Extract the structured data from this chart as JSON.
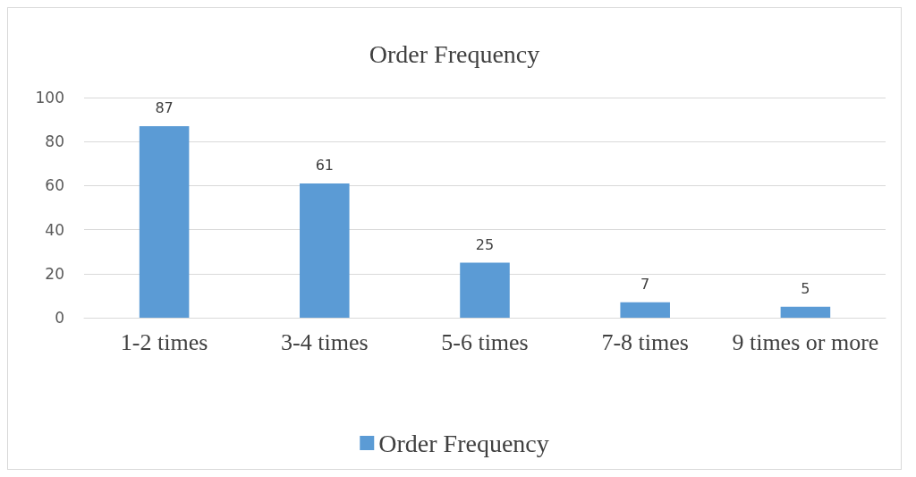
{
  "chart_data": {
    "type": "bar",
    "title": "Order Frequency",
    "categories": [
      "1-2 times",
      "3-4 times",
      "5-6 times",
      "7-8 times",
      "9 times or more"
    ],
    "series": [
      {
        "name": "Order Frequency",
        "color": "#5b9bd5",
        "values": [
          87,
          61,
          25,
          7,
          5
        ]
      }
    ],
    "ylim": [
      0,
      100
    ],
    "yticks": [
      0,
      20,
      40,
      60,
      80,
      100
    ],
    "grid": "y",
    "legend": "bottom",
    "data_labels": true
  }
}
